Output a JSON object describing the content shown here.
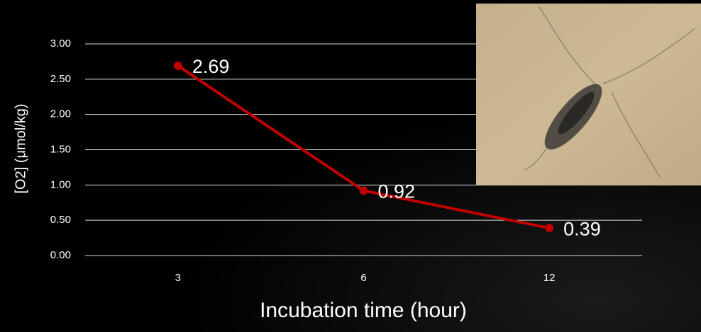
{
  "chart_data": {
    "type": "line",
    "x_label": "Incubation time (hour)",
    "y_label": "[O2] (μmol/kg)",
    "categories": [
      "3",
      "6",
      "12"
    ],
    "series": [
      {
        "name": "[O2]",
        "color": "#c00000",
        "values": [
          2.69,
          0.92,
          0.39
        ]
      }
    ],
    "ylim": [
      0,
      3
    ],
    "yticks": [
      {
        "value": 0,
        "label": "0.00"
      },
      {
        "value": 0.5,
        "label": "0.50"
      },
      {
        "value": 1,
        "label": "1.00"
      },
      {
        "value": 1.5,
        "label": "1.50"
      },
      {
        "value": 2,
        "label": "2.00"
      },
      {
        "value": 2.5,
        "label": "2.50"
      },
      {
        "value": 3,
        "label": "3.00"
      }
    ],
    "grid": true
  }
}
